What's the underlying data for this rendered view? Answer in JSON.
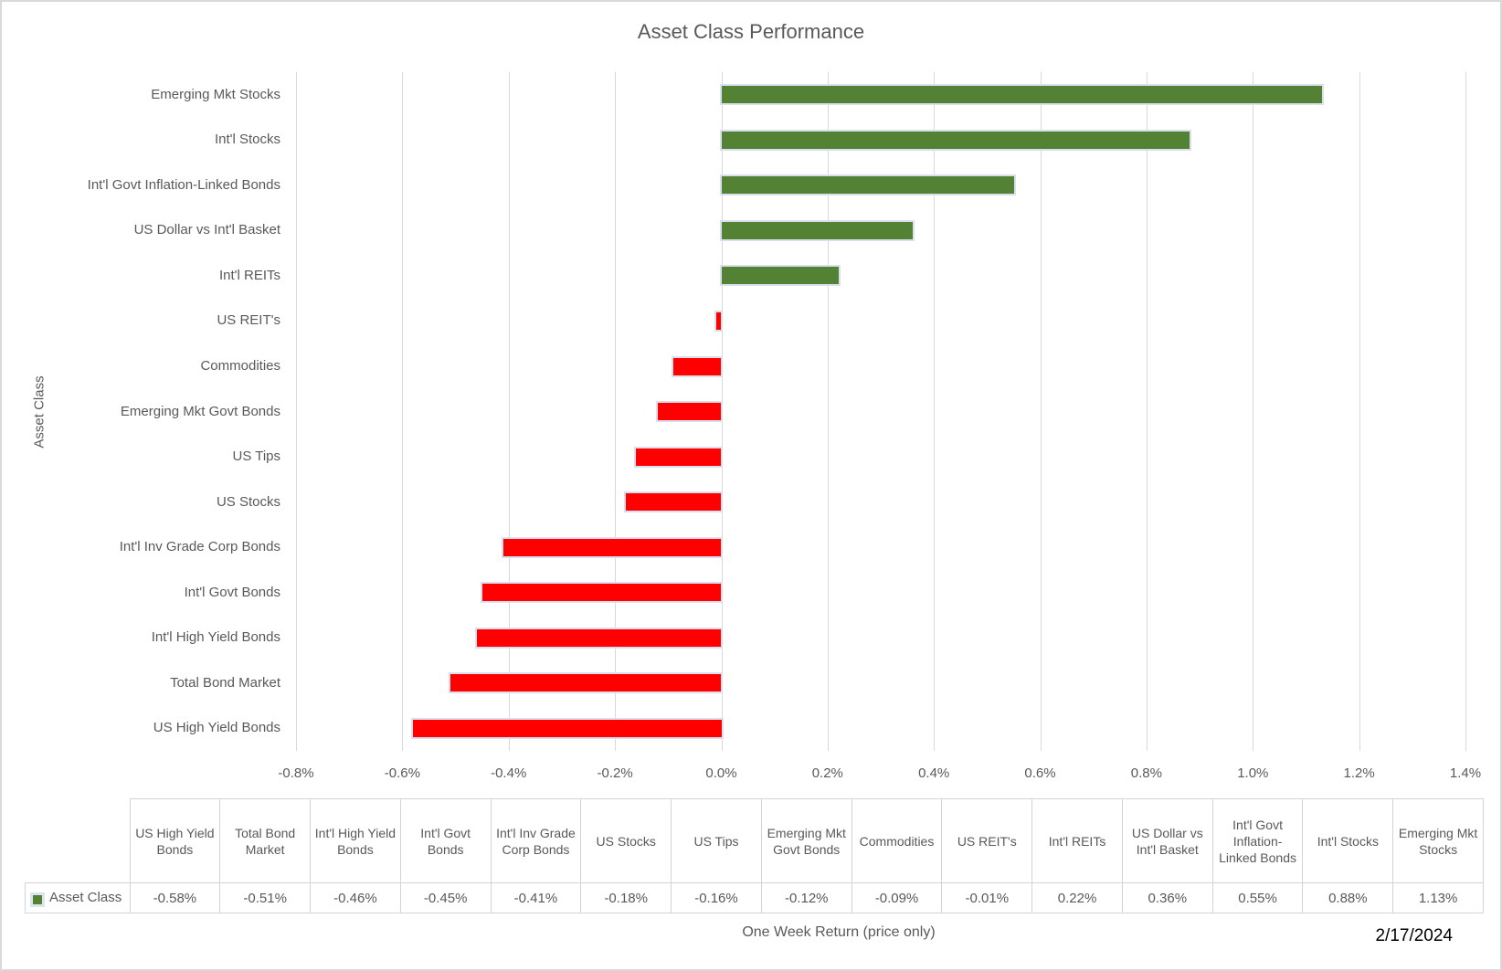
{
  "title": "Asset Class Performance",
  "axes": {
    "y_title": "Asset Class",
    "x_title": "One Week Return (price only)"
  },
  "date_label": "2/17/2024",
  "colors": {
    "positive": "#548235",
    "negative": "#FF0000",
    "gridline": "#d9d9d9",
    "text": "#595959"
  },
  "chart_data": {
    "type": "bar",
    "orientation": "horizontal",
    "title": "Asset Class Performance",
    "xlabel": "One Week Return (price only)",
    "ylabel": "Asset Class",
    "xlim": [
      -0.8,
      1.4
    ],
    "grid": true,
    "x_tick_values": [
      -0.8,
      -0.6,
      -0.4,
      -0.2,
      0.0,
      0.2,
      0.4,
      0.6,
      0.8,
      1.0,
      1.2,
      1.4
    ],
    "x_tick_labels": [
      "-0.8%",
      "-0.6%",
      "-0.4%",
      "-0.2%",
      "0.0%",
      "0.2%",
      "0.4%",
      "0.6%",
      "0.8%",
      "1.0%",
      "1.2%",
      "1.4%"
    ],
    "series_name": "Asset Class",
    "categories_top_to_bottom": [
      "Emerging Mkt Stocks",
      "Int'l Stocks",
      "Int'l Govt Inflation-Linked Bonds",
      "US Dollar vs Int'l Basket",
      "Int'l REITs",
      "US REIT's",
      "Commodities",
      "Emerging Mkt Govt Bonds",
      "US Tips",
      "US Stocks",
      "Int'l Inv Grade Corp Bonds",
      "Int'l Govt Bonds",
      "Int'l High Yield Bonds",
      "Total Bond Market",
      "US High Yield Bonds"
    ],
    "values_top_to_bottom": [
      1.13,
      0.88,
      0.55,
      0.36,
      0.22,
      -0.01,
      -0.09,
      -0.12,
      -0.16,
      -0.18,
      -0.41,
      -0.45,
      -0.46,
      -0.51,
      -0.58
    ],
    "value_unit": "%"
  },
  "table": {
    "legend_label": "Asset Class",
    "columns": [
      "US High Yield Bonds",
      "Total Bond Market",
      "Int'l High Yield Bonds",
      "Int'l Govt Bonds",
      "Int'l Inv Grade Corp Bonds",
      "US Stocks",
      "US Tips",
      "Emerging Mkt Govt Bonds",
      "Commodities",
      "US REIT's",
      "Int'l REITs",
      "US Dollar vs Int'l Basket",
      "Int'l Govt Inflation-Linked Bonds",
      "Int'l Stocks",
      "Emerging Mkt Stocks"
    ],
    "values": [
      "-0.58%",
      "-0.51%",
      "-0.46%",
      "-0.45%",
      "-0.41%",
      "-0.18%",
      "-0.16%",
      "-0.12%",
      "-0.09%",
      "-0.01%",
      "0.22%",
      "0.36%",
      "0.55%",
      "0.88%",
      "1.13%"
    ]
  }
}
